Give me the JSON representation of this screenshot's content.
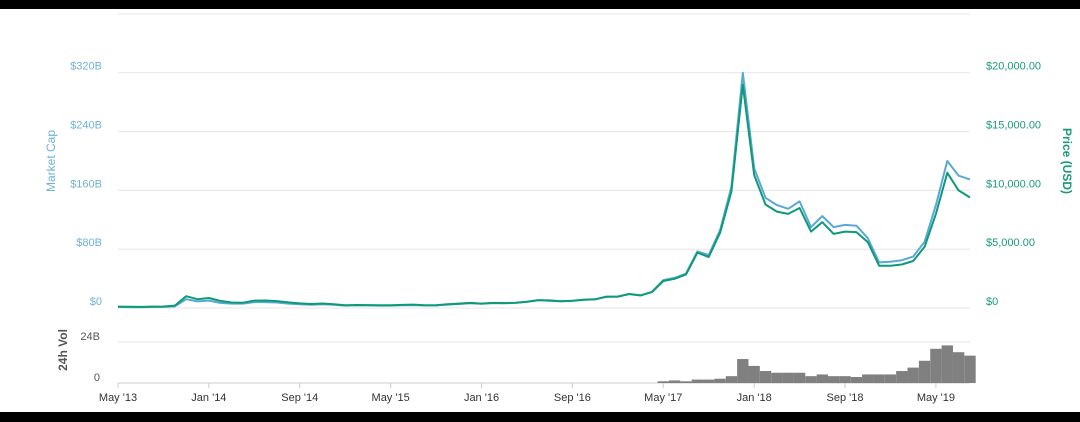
{
  "chart_data": {
    "type": "line",
    "ylabel": "Market Cap",
    "y2label": "Price (USD)",
    "volume_label": "24h Vol",
    "x": [
      "2013-05",
      "2013-06",
      "2013-07",
      "2013-08",
      "2013-09",
      "2013-10",
      "2013-11",
      "2013-12",
      "2014-01",
      "2014-02",
      "2014-03",
      "2014-04",
      "2014-05",
      "2014-06",
      "2014-07",
      "2014-08",
      "2014-09",
      "2014-10",
      "2014-11",
      "2014-12",
      "2015-01",
      "2015-02",
      "2015-03",
      "2015-04",
      "2015-05",
      "2015-06",
      "2015-07",
      "2015-08",
      "2015-09",
      "2015-10",
      "2015-11",
      "2015-12",
      "2016-01",
      "2016-02",
      "2016-03",
      "2016-04",
      "2016-05",
      "2016-06",
      "2016-07",
      "2016-08",
      "2016-09",
      "2016-10",
      "2016-11",
      "2016-12",
      "2017-01",
      "2017-02",
      "2017-03",
      "2017-04",
      "2017-05",
      "2017-06",
      "2017-07",
      "2017-08",
      "2017-09",
      "2017-10",
      "2017-11",
      "2017-12",
      "2018-01",
      "2018-02",
      "2018-03",
      "2018-04",
      "2018-05",
      "2018-06",
      "2018-07",
      "2018-08",
      "2018-09",
      "2018-10",
      "2018-11",
      "2018-12",
      "2019-01",
      "2019-02",
      "2019-03",
      "2019-04",
      "2019-05",
      "2019-06",
      "2019-07",
      "2019-08"
    ],
    "xlim": [
      "2013-05",
      "2019-08"
    ],
    "xticks": [
      {
        "value": "2013-05",
        "label": "May '13"
      },
      {
        "value": "2014-01",
        "label": "Jan '14"
      },
      {
        "value": "2014-09",
        "label": "Sep '14"
      },
      {
        "value": "2015-05",
        "label": "May '15"
      },
      {
        "value": "2016-01",
        "label": "Jan '16"
      },
      {
        "value": "2016-09",
        "label": "Sep '16"
      },
      {
        "value": "2017-05",
        "label": "May '17"
      },
      {
        "value": "2018-01",
        "label": "Jan '18"
      },
      {
        "value": "2018-09",
        "label": "Sep '18"
      },
      {
        "value": "2019-05",
        "label": "May '19"
      }
    ],
    "series": [
      {
        "name": "Market Cap",
        "color": "#5aa8d6",
        "axis": "y",
        "values": [
          1.3,
          1.2,
          1.0,
          1.3,
          1.5,
          2.2,
          12,
          9,
          10,
          7,
          6,
          6,
          8,
          8,
          7.5,
          6,
          5,
          4.5,
          5,
          4.3,
          3.2,
          3.7,
          3.5,
          3.3,
          3.3,
          3.7,
          4.0,
          3.4,
          3.5,
          4.6,
          5.5,
          6.5,
          5.7,
          6.7,
          6.4,
          7.0,
          8.5,
          10.5,
          10.6,
          9.3,
          9.7,
          11.3,
          11.7,
          15.5,
          15.5,
          19,
          17,
          22,
          38,
          41,
          47,
          77,
          72,
          106,
          165,
          320,
          190,
          150,
          140,
          135,
          145,
          110,
          125,
          110,
          113,
          112,
          95,
          62,
          63,
          65,
          70,
          90,
          140,
          200,
          180,
          175
        ]
      },
      {
        "name": "Price (USD)",
        "color": "#0e9a78",
        "axis": "y2",
        "values": [
          115,
          100,
          90,
          120,
          130,
          200,
          1000,
          750,
          850,
          600,
          470,
          450,
          630,
          640,
          590,
          480,
          390,
          340,
          380,
          320,
          230,
          255,
          245,
          235,
          230,
          265,
          285,
          230,
          237,
          315,
          377,
          430,
          370,
          435,
          415,
          450,
          530,
          670,
          620,
          575,
          610,
          700,
          740,
          960,
          970,
          1190,
          1070,
          1350,
          2300,
          2480,
          2850,
          4700,
          4340,
          6400,
          9900,
          19000,
          11300,
          8800,
          8200,
          8000,
          8500,
          6500,
          7300,
          6300,
          6500,
          6450,
          5600,
          3600,
          3600,
          3700,
          4000,
          5200,
          8000,
          11500,
          10000,
          9400
        ]
      },
      {
        "name": "24h Vol",
        "color": "#808080",
        "axis": "volume",
        "values": [
          null,
          null,
          null,
          null,
          null,
          null,
          null,
          null,
          null,
          null,
          null,
          null,
          null,
          null,
          null,
          null,
          null,
          null,
          null,
          null,
          null,
          null,
          null,
          null,
          null,
          null,
          null,
          null,
          null,
          null,
          null,
          null,
          null,
          null,
          null,
          null,
          null,
          null,
          null,
          null,
          null,
          null,
          null,
          null,
          null,
          null,
          null,
          null,
          1,
          1.5,
          1,
          2,
          2,
          2.5,
          4,
          14,
          10,
          7,
          6,
          6,
          6,
          4,
          5,
          4,
          4,
          3.5,
          5,
          5,
          5,
          7,
          9,
          13,
          20,
          22,
          18,
          16
        ]
      }
    ],
    "ylim": [
      0,
      400
    ],
    "yticks": [
      {
        "value": 0,
        "label": "$0"
      },
      {
        "value": 80,
        "label": "$80B"
      },
      {
        "value": 160,
        "label": "$160B"
      },
      {
        "value": 240,
        "label": "$240B"
      },
      {
        "value": 320,
        "label": "$320B"
      }
    ],
    "y2lim": [
      0,
      25000
    ],
    "y2ticks": [
      {
        "value": 0,
        "label": "$0"
      },
      {
        "value": 5000,
        "label": "$5,000.00"
      },
      {
        "value": 10000,
        "label": "$10,000.00"
      },
      {
        "value": 15000,
        "label": "$15,000.00"
      },
      {
        "value": 20000,
        "label": "$20,000.00"
      }
    ],
    "volume_lim": [
      0,
      38
    ],
    "volume_ticks": [
      0,
      {
        "value": 24,
        "label": "24B"
      }
    ],
    "grid": true
  }
}
